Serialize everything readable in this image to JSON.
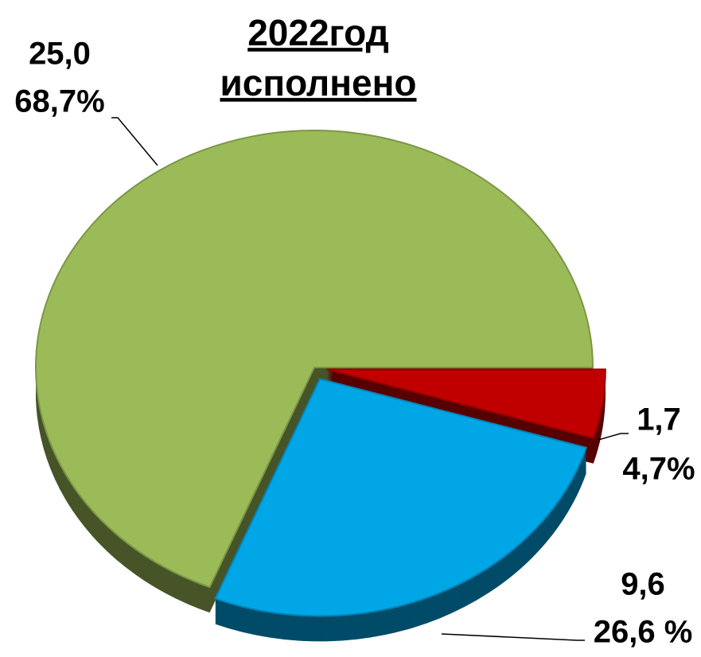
{
  "chart_data": {
    "type": "pie",
    "title": [
      "2022год",
      "исполнено"
    ],
    "values": [
      1.7,
      9.6,
      25.0
    ],
    "value_labels": [
      "1,7",
      "9,6",
      "25,0"
    ],
    "percents": [
      4.7,
      26.6,
      68.7
    ],
    "percent_labels": [
      "4,7%",
      "26,6 %",
      "68,7%"
    ],
    "colors": [
      "#c00000",
      "#00a6e6",
      "#9bbb59"
    ]
  }
}
